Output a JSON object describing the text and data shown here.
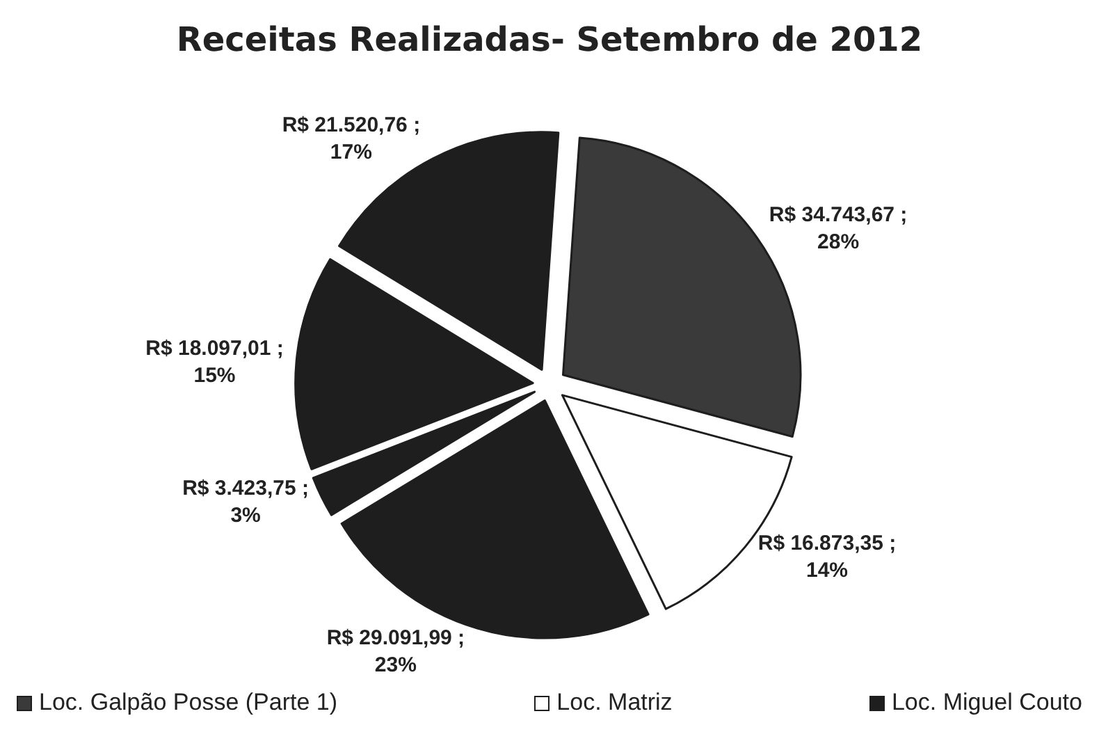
{
  "chart_data": {
    "type": "pie",
    "title": "Receitas Realizadas- Setembro de 2012",
    "categories": [
      "Loc. Galpão Posse (Parte 1)",
      "Loc. Matriz",
      "Loc. Miguel Couto",
      null,
      null,
      null
    ],
    "values": [
      34743.67,
      16873.35,
      29091.99,
      3423.75,
      18097.01,
      21520.76
    ],
    "value_labels": [
      "R$ 34.743,67 ;\n28%",
      "R$ 16.873,35 ;\n14%",
      "R$ 29.091,99 ;\n23%",
      "R$ 3.423,75 ;\n3%",
      "R$ 18.097,01 ;\n15%",
      "R$ 21.520,76 ;\n17%"
    ],
    "colors": [
      "#3a3a3a",
      "#ffffff",
      "#1e1e1e",
      "#1e1e1e",
      "#1e1e1e",
      "#1e1e1e"
    ],
    "legend": "bottom"
  }
}
